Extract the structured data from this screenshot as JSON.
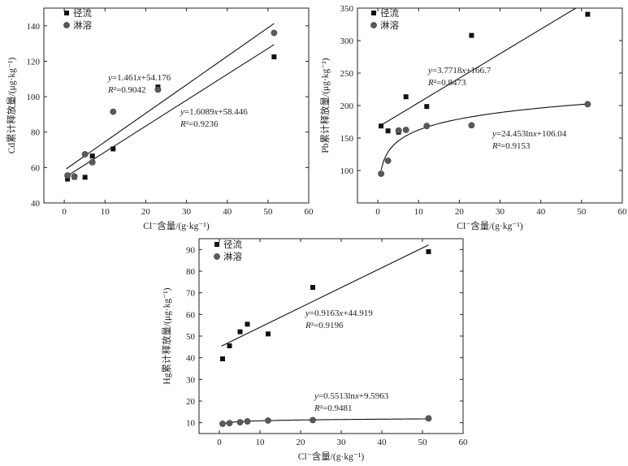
{
  "chart_data": [
    {
      "id": "cd",
      "type": "scatter",
      "xlabel": "Cl⁻含量/(g·kg⁻¹)",
      "ylabel": "Cd累计释放量/(μg·kg⁻¹)",
      "xlim": [
        -5,
        60
      ],
      "ylim": [
        40,
        150
      ],
      "xticks": [
        0,
        10,
        20,
        30,
        40,
        50,
        60
      ],
      "yticks": [
        40,
        60,
        80,
        100,
        120,
        140
      ],
      "legend": [
        "径流",
        "淋溶"
      ],
      "series": [
        {
          "name": "径流",
          "marker": "square",
          "x": [
            0.8,
            2.5,
            5.1,
            6.9,
            12.0,
            23.0,
            51.5
          ],
          "y": [
            53.5,
            54.5,
            54.5,
            66.5,
            70.5,
            105.5,
            122.5
          ]
        },
        {
          "name": "淋溶",
          "marker": "circle",
          "x": [
            0.8,
            2.5,
            5.1,
            6.9,
            12.0,
            23.0,
            51.5
          ],
          "y": [
            55.5,
            55.0,
            67.5,
            63.0,
            91.5,
            104.0,
            136.0
          ]
        }
      ],
      "fits": [
        {
          "kind": "linear",
          "a": 1.6089,
          "b": 58.446,
          "range": [
            0.5,
            51.5
          ],
          "equation": "y=1.6089x+58.446",
          "r2": "R²=0.9236"
        },
        {
          "kind": "linear",
          "a": 1.461,
          "b": 54.176,
          "range": [
            0.5,
            51.5
          ],
          "equation": "y=1.461x+54.176",
          "r2": "R²=0.9042"
        }
      ]
    },
    {
      "id": "pb",
      "type": "scatter",
      "xlabel": "Cl⁻含量/(g·kg⁻¹)",
      "ylabel": "Pb累计释放量/(μg·kg⁻¹)",
      "xlim": [
        -5,
        60
      ],
      "ylim": [
        50,
        350
      ],
      "xticks": [
        0,
        10,
        20,
        30,
        40,
        50,
        60
      ],
      "yticks": [
        100,
        150,
        200,
        250,
        300,
        350
      ],
      "legend": [
        "径流",
        "淋溶"
      ],
      "series": [
        {
          "name": "径流",
          "marker": "square",
          "x": [
            0.8,
            2.5,
            5.1,
            6.9,
            12.0,
            23.0,
            51.5
          ],
          "y": [
            168.5,
            161.0,
            159.0,
            213.5,
            198.5,
            308.0,
            340.5
          ]
        },
        {
          "name": "淋溶",
          "marker": "circle",
          "x": [
            0.8,
            2.5,
            5.1,
            6.9,
            12.0,
            23.0,
            51.5
          ],
          "y": [
            95.0,
            115.0,
            161.5,
            162.5,
            168.5,
            169.5,
            202.0
          ]
        }
      ],
      "fits": [
        {
          "kind": "linear",
          "a": 3.7718,
          "b": 166.7,
          "range": [
            0.5,
            51.5
          ],
          "equation": "y=3.7718x+166.7",
          "r2": "R²=0.8473"
        },
        {
          "kind": "log",
          "a": 24.453,
          "b": 106.04,
          "range": [
            0.8,
            51.5
          ],
          "equation": "y=24.453lnx+106.04",
          "r2": "R²=0.9153"
        }
      ]
    },
    {
      "id": "hg",
      "type": "scatter",
      "xlabel": "Cl⁻含量/(g·kg⁻¹)",
      "ylabel": "Hg累计释放量/(μg·kg⁻¹)",
      "xlim": [
        -5,
        60
      ],
      "ylim": [
        5,
        95
      ],
      "xticks": [
        0,
        10,
        20,
        30,
        40,
        50,
        60
      ],
      "yticks": [
        10,
        20,
        30,
        40,
        50,
        60,
        70,
        80,
        90
      ],
      "legend": [
        "径流",
        "淋溶"
      ],
      "series": [
        {
          "name": "径流",
          "marker": "square",
          "x": [
            0.8,
            2.5,
            5.1,
            6.9,
            12.0,
            23.0,
            51.5
          ],
          "y": [
            39.5,
            45.5,
            52.0,
            55.5,
            51.0,
            72.5,
            89.0
          ]
        },
        {
          "name": "淋溶",
          "marker": "circle",
          "x": [
            0.8,
            2.5,
            5.1,
            6.9,
            12.0,
            23.0,
            51.5
          ],
          "y": [
            9.5,
            9.8,
            10.2,
            10.6,
            11.0,
            11.2,
            12.0
          ]
        }
      ],
      "fits": [
        {
          "kind": "linear",
          "a": 0.9163,
          "b": 44.919,
          "range": [
            0.5,
            51.5
          ],
          "equation": "y=0.9163x+44.919",
          "r2": "R²=0.9196"
        },
        {
          "kind": "log",
          "a": 0.5513,
          "b": 9.5963,
          "range": [
            0.8,
            51.5
          ],
          "equation": "y=0.5513lnx+9.5963",
          "r2": "R²=0.9481"
        }
      ]
    }
  ]
}
